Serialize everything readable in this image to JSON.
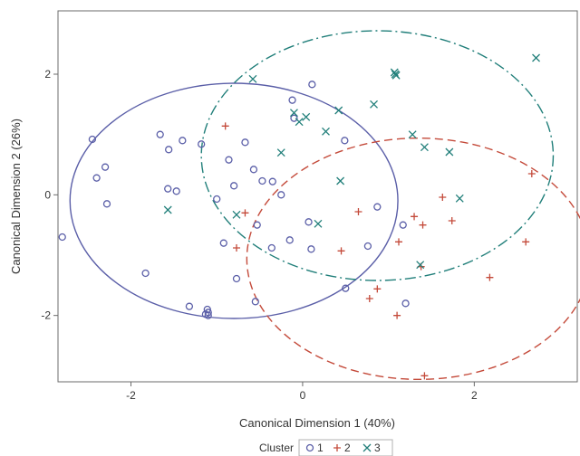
{
  "chart_data": {
    "type": "scatter",
    "title": "",
    "xlabel": "Canonical Dimension 1 (40%)",
    "ylabel": "Canonical Dimension 2 (26%)",
    "xlim": [
      -2.85,
      3.2
    ],
    "ylim": [
      -3.1,
      3.05
    ],
    "xticks": [
      -2,
      0,
      2
    ],
    "yticks": [
      -2,
      0,
      2
    ],
    "grid": false,
    "legend": {
      "title": "Cluster",
      "placement": "bottom"
    },
    "series": [
      {
        "name": "1",
        "marker": "circle",
        "color": "#5b5fa8",
        "x": [
          -2.8,
          -2.45,
          -2.4,
          -2.3,
          -2.28,
          -1.83,
          -1.66,
          -1.57,
          -1.56,
          -1.47,
          -1.4,
          -1.32,
          -1.18,
          -1.13,
          -1.1,
          -1.0,
          -0.92,
          -0.86,
          -0.8,
          -0.77,
          -0.67,
          -0.57,
          -0.55,
          -0.53,
          -0.47,
          -0.36,
          -0.35,
          -0.25,
          -0.15,
          -0.12,
          -0.1,
          0.07,
          0.1,
          0.11,
          0.49,
          0.5,
          0.76,
          0.87,
          1.2,
          1.17,
          -1.11,
          -1.1
        ],
        "y": [
          -0.7,
          0.92,
          0.28,
          0.46,
          -0.15,
          -1.3,
          1.0,
          0.1,
          0.75,
          0.06,
          0.9,
          -1.85,
          0.84,
          -1.98,
          -2.0,
          -0.07,
          -0.8,
          0.58,
          0.15,
          -1.39,
          0.87,
          0.42,
          -1.77,
          -0.5,
          0.23,
          -0.88,
          0.22,
          0.0,
          -0.75,
          1.57,
          1.27,
          -0.45,
          -0.9,
          1.83,
          0.9,
          -1.55,
          -0.85,
          -0.2,
          -1.8,
          -0.5,
          -1.9,
          -1.95
        ]
      },
      {
        "name": "2",
        "marker": "plus",
        "color": "#c44a3a",
        "x": [
          -0.9,
          -0.77,
          -0.67,
          0.45,
          0.65,
          0.78,
          0.87,
          1.1,
          1.12,
          1.3,
          1.38,
          1.4,
          1.42,
          1.63,
          1.74,
          2.18,
          2.6,
          2.67
        ],
        "y": [
          1.14,
          -0.88,
          -0.3,
          -0.93,
          -0.28,
          -1.72,
          -1.56,
          -2.0,
          -0.78,
          -0.36,
          -1.19,
          -0.5,
          -3.0,
          -0.04,
          -0.43,
          -1.37,
          -0.78,
          0.35
        ]
      },
      {
        "name": "3",
        "marker": "x",
        "color": "#217f7a",
        "x": [
          -1.57,
          -0.77,
          -0.58,
          -0.25,
          -0.1,
          -0.04,
          0.04,
          0.18,
          0.27,
          0.42,
          0.44,
          0.83,
          1.07,
          1.08,
          1.09,
          1.28,
          1.37,
          1.42,
          1.71,
          1.83,
          2.72
        ],
        "y": [
          -0.25,
          -0.33,
          1.92,
          0.7,
          1.36,
          1.21,
          1.29,
          -0.48,
          1.05,
          1.4,
          0.23,
          1.5,
          2.03,
          2.0,
          1.98,
          1.0,
          -1.16,
          0.79,
          0.71,
          -0.06,
          2.27
        ]
      }
    ],
    "ellipses": [
      {
        "cluster": "1",
        "color": "#5b5fa8",
        "style": "solid",
        "cx": -0.8,
        "cy": -0.1,
        "rx": 1.91,
        "ry": 1.95
      },
      {
        "cluster": "2",
        "color": "#c44a3a",
        "style": "dashed",
        "cx": 1.35,
        "cy": -1.06,
        "rx": 2.0,
        "ry": 2.0
      },
      {
        "cluster": "3",
        "color": "#217f7a",
        "style": "dashdot",
        "cx": 0.87,
        "cy": 0.65,
        "rx": 2.05,
        "ry": 2.07
      }
    ]
  }
}
